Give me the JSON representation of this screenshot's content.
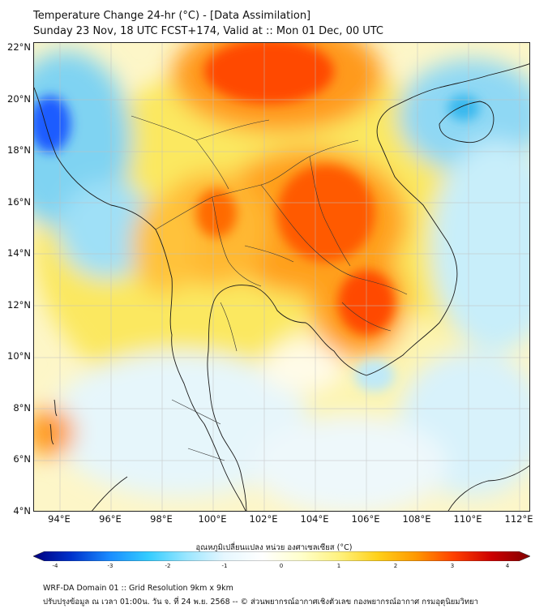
{
  "title_line1": "Temperature Change 24-hr (°C) - [Data Assimilation]",
  "title_line2": "Sunday 23 Nov, 18 UTC FCST+174, Valid at :: Mon 01 Dec, 00 UTC",
  "lat_labels": [
    "22°N",
    "20°N",
    "18°N",
    "16°N",
    "14°N",
    "12°N",
    "10°N",
    "8°N",
    "6°N",
    "4°N"
  ],
  "lon_labels": [
    "94°E",
    "96°E",
    "98°E",
    "100°E",
    "102°E",
    "104°E",
    "106°E",
    "108°E",
    "110°E",
    "112°E"
  ],
  "colorbar": {
    "title": "อุณหภูมิเปลี่ยนแปลง หน่วย องศาเซลเซียส (°C)",
    "ticks": [
      "-4",
      "-3",
      "-2",
      "-1",
      "0",
      "1",
      "2",
      "3",
      "4"
    ],
    "colors": [
      "#00007f",
      "#0033cc",
      "#1a8cff",
      "#33ccff",
      "#99e6ff",
      "#e6f7ff",
      "#ffffff",
      "#ffffcc",
      "#fff27f",
      "#ffd11a",
      "#ff9900",
      "#ff4000",
      "#cc0000",
      "#800000"
    ]
  },
  "footer_line1": "WRF-DA Domain 01 :: Grid Resolution 9km x 9km",
  "footer_line2": "ปรับปรุงข้อมูล ณ เวลา 01:00น. วัน จ. ที่ 24 พ.ย. 2568 -- © ส่วนพยากรณ์อากาศเชิงตัวเลข กองพยากรณ์อากาศ กรมอุตุนิยมวิทยา"
}
